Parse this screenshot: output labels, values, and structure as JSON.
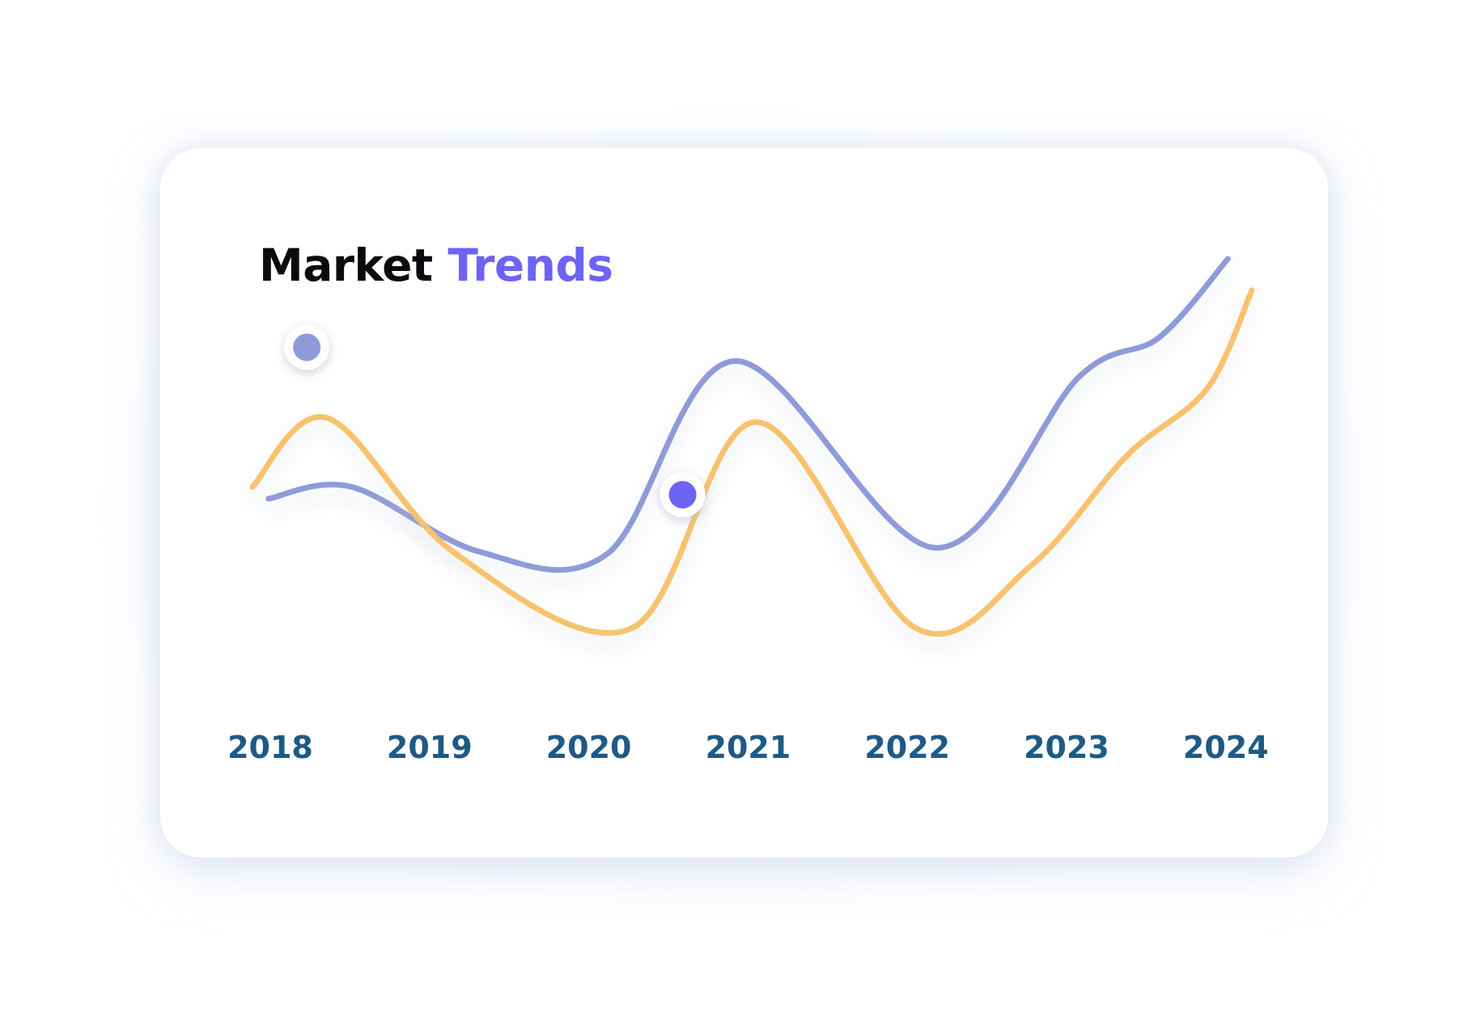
{
  "title": {
    "part1": "Market",
    "part2": "Trends"
  },
  "colors": {
    "title_primary": "#0b0b0f",
    "title_accent": "#6d63f5",
    "axis_label": "#1e5a86",
    "series_blue": "#8f9bd9",
    "series_orange": "#f8c26e",
    "marker_accent": "#6d63f5"
  },
  "chart_data": {
    "type": "line",
    "title": "Market Trends",
    "xlabel": "",
    "ylabel": "",
    "x": [
      "2018",
      "2019",
      "2020",
      "2021",
      "2022",
      "2023",
      "2024"
    ],
    "x_range": [
      2017.93,
      2024.18
    ],
    "ylim": [
      0,
      100
    ],
    "grid": false,
    "legend": "none",
    "series": [
      {
        "color": "#8f9bd9",
        "points": [
          [
            2018.03,
            39.0
          ],
          [
            2018.55,
            42.0
          ],
          [
            2019.35,
            25.5
          ],
          [
            2020.15,
            25.0
          ],
          [
            2020.95,
            74.0
          ],
          [
            2022.2,
            26.5
          ],
          [
            2023.1,
            70.0
          ],
          [
            2023.6,
            80.0
          ],
          [
            2024.03,
            100.0
          ]
        ],
        "marker": {
          "x": 2018.27,
          "y": 77.5,
          "color": "#8f9bd9"
        }
      },
      {
        "color": "#f8c26e",
        "points": [
          [
            2017.93,
            42.0
          ],
          [
            2018.4,
            59.5
          ],
          [
            2019.2,
            25.0
          ],
          [
            2020.3,
            6.0
          ],
          [
            2021.08,
            58.5
          ],
          [
            2022.08,
            6.0
          ],
          [
            2022.8,
            22.0
          ],
          [
            2023.4,
            50.0
          ],
          [
            2023.9,
            67.0
          ],
          [
            2024.18,
            92.0
          ]
        ],
        "marker": {
          "x": 2020.62,
          "y": 40.0,
          "color": "#6d63f5"
        }
      }
    ]
  }
}
